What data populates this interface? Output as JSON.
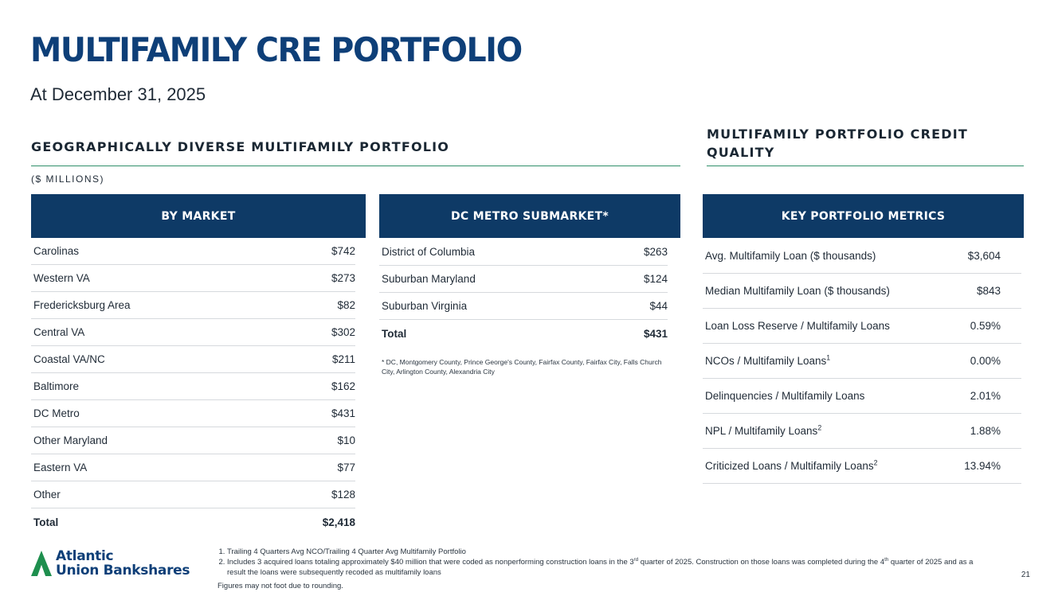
{
  "page": {
    "title": "MULTIFAMILY CRE PORTFOLIO",
    "subtitle": "At December 31, 2025",
    "page_number": "21"
  },
  "geo_section": {
    "heading": "GEOGRAPHICALLY DIVERSE MULTIFAMILY PORTFOLIO",
    "units": "($ MILLIONS)"
  },
  "credit_section": {
    "heading_line1": "MULTIFAMILY PORTFOLIO CREDIT",
    "heading_line2": "QUALITY"
  },
  "by_market": {
    "header": "BY MARKET",
    "rows": [
      {
        "label": "Carolinas",
        "value": "$742"
      },
      {
        "label": "Western VA",
        "value": "$273"
      },
      {
        "label": "Fredericksburg Area",
        "value": "$82"
      },
      {
        "label": "Central VA",
        "value": "$302"
      },
      {
        "label": "Coastal VA/NC",
        "value": "$211"
      },
      {
        "label": "Baltimore",
        "value": "$162"
      },
      {
        "label": "DC Metro",
        "value": "$431"
      },
      {
        "label": "Other Maryland",
        "value": "$10"
      },
      {
        "label": "Eastern VA",
        "value": "$77"
      },
      {
        "label": "Other",
        "value": "$128"
      }
    ],
    "total": {
      "label": "Total",
      "value": "$2,418"
    }
  },
  "dc_metro": {
    "header": "DC METRO SUBMARKET*",
    "rows": [
      {
        "label": "District of Columbia",
        "value": "$263"
      },
      {
        "label": "Suburban Maryland",
        "value": "$124"
      },
      {
        "label": "Suburban Virginia",
        "value": "$44"
      }
    ],
    "total": {
      "label": "Total",
      "value": "$431"
    },
    "note": "* DC, Montgomery County, Prince George's County, Fairfax County, Fairfax City, Falls Church City, Arlington County, Alexandria City"
  },
  "metrics": {
    "header": "KEY PORTFOLIO METRICS",
    "rows": [
      {
        "label": "Avg. Multifamily Loan ($ thousands)",
        "sup": "",
        "value": "$3,604"
      },
      {
        "label": "Median Multifamily Loan ($ thousands)",
        "sup": "",
        "value": "$843"
      },
      {
        "label": "Loan Loss Reserve / Multifamily Loans",
        "sup": "",
        "value": "0.59%"
      },
      {
        "label": "NCOs / Multifamily Loans",
        "sup": "1",
        "value": "0.00%"
      },
      {
        "label": "Delinquencies / Multifamily Loans",
        "sup": "",
        "value": "2.01%"
      },
      {
        "label": "NPL / Multifamily Loans",
        "sup": "2",
        "value": "1.88%"
      },
      {
        "label": "Criticized Loans / Multifamily Loans",
        "sup": "2",
        "value": "13.94%"
      }
    ]
  },
  "footnotes": {
    "items": [
      {
        "before": "Trailing 4 Quarters Avg NCO/Trailing 4 Quarter Avg Multifamily Portfolio",
        "sup1": "",
        "middle": "",
        "sup2": "",
        "after": ""
      },
      {
        "before": "Includes 3 acquired loans totaling approximately $40 million that were coded as nonperforming construction loans in the 3",
        "sup1": "rd",
        "middle": " quarter of 2025. Construction on those loans was completed during the 4",
        "sup2": "th",
        "after": " quarter of 2025 and as a result the loans were subsequently recoded as multifamily loans"
      }
    ],
    "rounding": "Figures may not foot due to rounding."
  },
  "logo": {
    "line1": "Atlantic",
    "line2": "Union Bankshares",
    "primary_color": "#0e3f78",
    "accent_color": "#1e8f4e"
  }
}
